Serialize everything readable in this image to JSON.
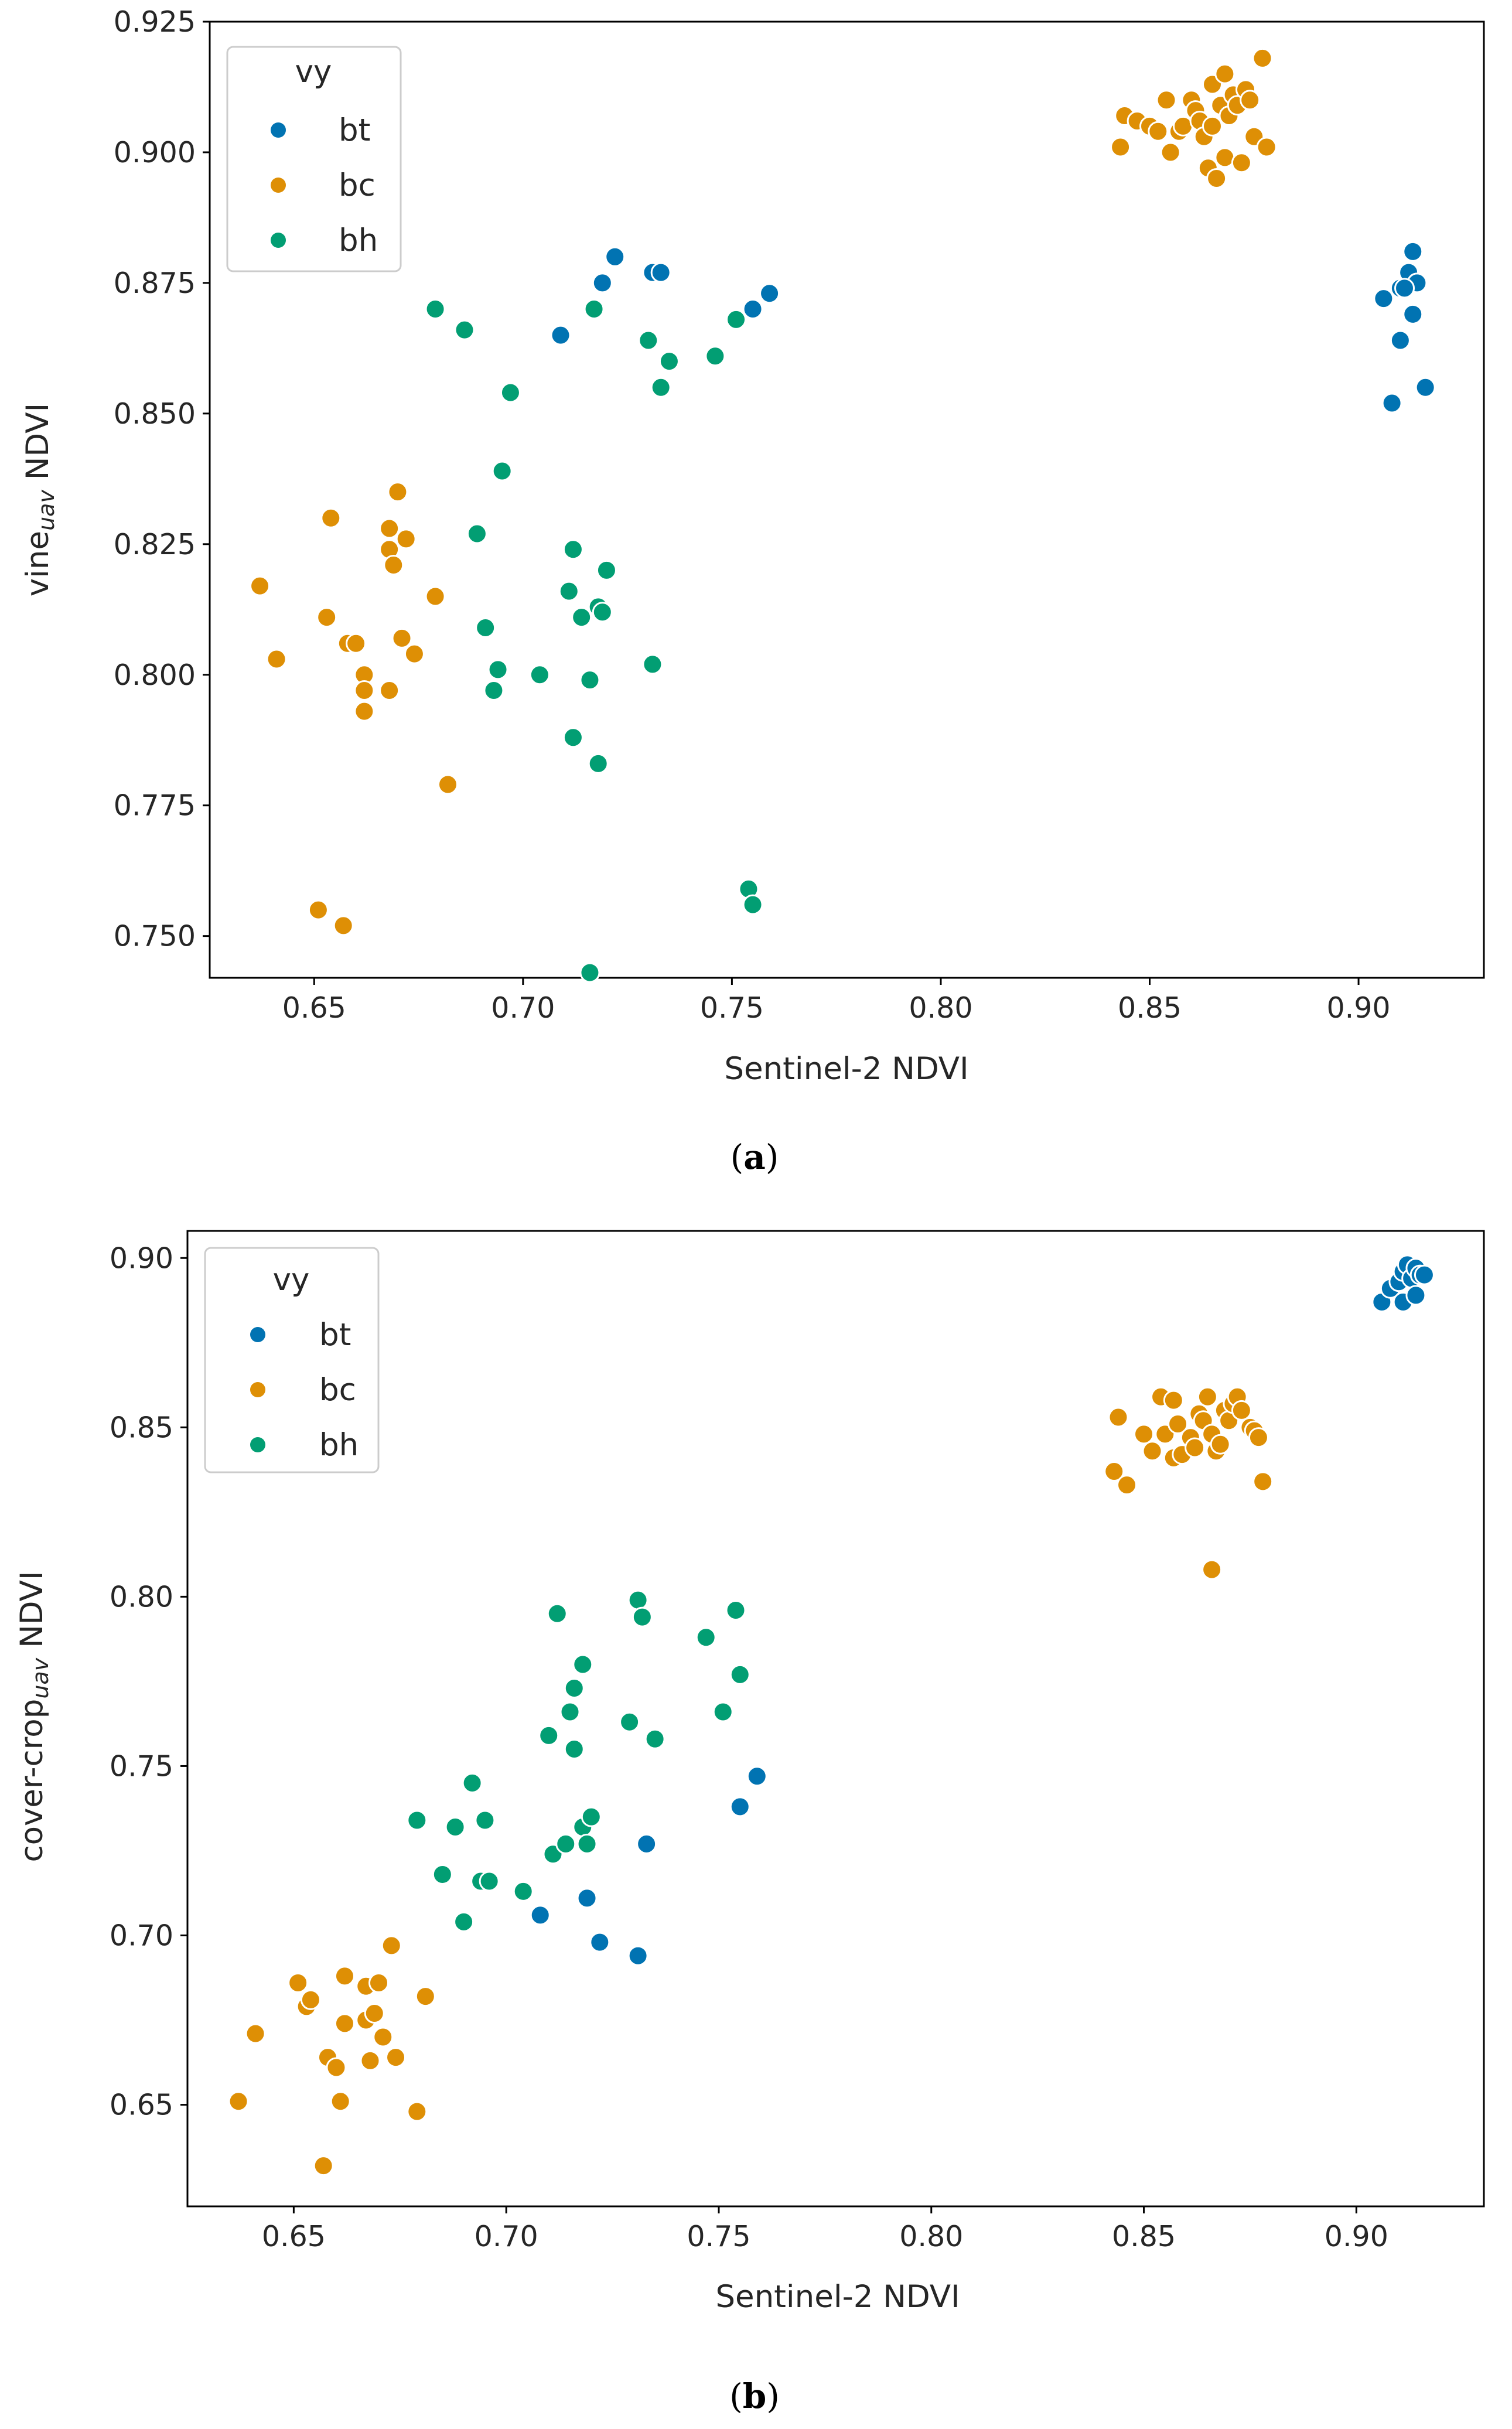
{
  "chart_data": [
    {
      "type": "scatter",
      "caption": {
        "open": "(",
        "letter": "a",
        "close": ")"
      },
      "xlabel": "Sentinel-2 NDVI",
      "ylabel": {
        "base": "vine",
        "subscript": "uav",
        "suffix": " NDVI"
      },
      "xlim": [
        0.625,
        0.93
      ],
      "ylim": [
        0.742,
        0.925
      ],
      "xticks": [
        "0.65",
        "0.70",
        "0.75",
        "0.80",
        "0.85",
        "0.90"
      ],
      "yticks": [
        "0.750",
        "0.775",
        "0.800",
        "0.825",
        "0.850",
        "0.875",
        "0.900",
        "0.925"
      ],
      "legend": {
        "title": "vy",
        "position": "top-left"
      },
      "series": [
        {
          "name": "bt",
          "color": "#0173b2",
          "points": [
            [
              0.709,
              0.865
            ],
            [
              0.719,
              0.875
            ],
            [
              0.722,
              0.88
            ],
            [
              0.731,
              0.877
            ],
            [
              0.733,
              0.877
            ],
            [
              0.755,
              0.87
            ],
            [
              0.759,
              0.873
            ],
            [
              0.906,
              0.872
            ],
            [
              0.91,
              0.874
            ],
            [
              0.912,
              0.877
            ],
            [
              0.913,
              0.881
            ],
            [
              0.914,
              0.875
            ],
            [
              0.911,
              0.874
            ],
            [
              0.913,
              0.869
            ],
            [
              0.91,
              0.864
            ],
            [
              0.908,
              0.852
            ],
            [
              0.916,
              0.855
            ]
          ]
        },
        {
          "name": "bc",
          "color": "#de8f05",
          "points": [
            [
              0.637,
              0.817
            ],
            [
              0.641,
              0.803
            ],
            [
              0.654,
              0.83
            ],
            [
              0.653,
              0.811
            ],
            [
              0.658,
              0.806
            ],
            [
              0.66,
              0.806
            ],
            [
              0.662,
              0.8
            ],
            [
              0.662,
              0.797
            ],
            [
              0.662,
              0.793
            ],
            [
              0.668,
              0.828
            ],
            [
              0.668,
              0.824
            ],
            [
              0.669,
              0.821
            ],
            [
              0.67,
              0.835
            ],
            [
              0.672,
              0.826
            ],
            [
              0.671,
              0.807
            ],
            [
              0.674,
              0.804
            ],
            [
              0.668,
              0.797
            ],
            [
              0.679,
              0.815
            ],
            [
              0.682,
              0.779
            ],
            [
              0.651,
              0.755
            ],
            [
              0.657,
              0.752
            ],
            [
              0.843,
              0.901
            ],
            [
              0.844,
              0.907
            ],
            [
              0.847,
              0.906
            ],
            [
              0.85,
              0.905
            ],
            [
              0.852,
              0.904
            ],
            [
              0.854,
              0.91
            ],
            [
              0.855,
              0.9
            ],
            [
              0.857,
              0.904
            ],
            [
              0.858,
              0.905
            ],
            [
              0.86,
              0.91
            ],
            [
              0.861,
              0.908
            ],
            [
              0.862,
              0.906
            ],
            [
              0.863,
              0.903
            ],
            [
              0.864,
              0.897
            ],
            [
              0.865,
              0.913
            ],
            [
              0.865,
              0.905
            ],
            [
              0.866,
              0.895
            ],
            [
              0.867,
              0.909
            ],
            [
              0.868,
              0.915
            ],
            [
              0.868,
              0.899
            ],
            [
              0.869,
              0.907
            ],
            [
              0.87,
              0.911
            ],
            [
              0.871,
              0.909
            ],
            [
              0.872,
              0.898
            ],
            [
              0.873,
              0.912
            ],
            [
              0.874,
              0.91
            ],
            [
              0.875,
              0.903
            ],
            [
              0.877,
              0.918
            ],
            [
              0.878,
              0.901
            ]
          ]
        },
        {
          "name": "bh",
          "color": "#029e73",
          "points": [
            [
              0.679,
              0.87
            ],
            [
              0.686,
              0.866
            ],
            [
              0.697,
              0.854
            ],
            [
              0.695,
              0.839
            ],
            [
              0.689,
              0.827
            ],
            [
              0.691,
              0.809
            ],
            [
              0.694,
              0.801
            ],
            [
              0.693,
              0.797
            ],
            [
              0.704,
              0.8
            ],
            [
              0.711,
              0.816
            ],
            [
              0.712,
              0.824
            ],
            [
              0.714,
              0.811
            ],
            [
              0.717,
              0.87
            ],
            [
              0.718,
              0.813
            ],
            [
              0.719,
              0.812
            ],
            [
              0.72,
              0.82
            ],
            [
              0.716,
              0.799
            ],
            [
              0.712,
              0.788
            ],
            [
              0.718,
              0.783
            ],
            [
              0.716,
              0.743
            ],
            [
              0.73,
              0.864
            ],
            [
              0.733,
              0.855
            ],
            [
              0.735,
              0.86
            ],
            [
              0.731,
              0.802
            ],
            [
              0.746,
              0.861
            ],
            [
              0.751,
              0.868
            ],
            [
              0.754,
              0.759
            ],
            [
              0.755,
              0.756
            ]
          ]
        }
      ]
    },
    {
      "type": "scatter",
      "caption": {
        "open": "(",
        "letter": "b",
        "close": ")"
      },
      "xlabel": "Sentinel-2 NDVI",
      "ylabel": {
        "base": "cover-crop",
        "subscript": "uav",
        "suffix": " NDVI"
      },
      "xlim": [
        0.625,
        0.93
      ],
      "ylim": [
        0.62,
        0.908
      ],
      "xticks": [
        "0.65",
        "0.70",
        "0.75",
        "0.80",
        "0.85",
        "0.90"
      ],
      "yticks": [
        "0.65",
        "0.70",
        "0.75",
        "0.80",
        "0.85",
        "0.90"
      ],
      "legend": {
        "title": "vy",
        "position": "top-left"
      },
      "series": [
        {
          "name": "bt",
          "color": "#0173b2",
          "points": [
            [
              0.708,
              0.706
            ],
            [
              0.719,
              0.711
            ],
            [
              0.722,
              0.698
            ],
            [
              0.731,
              0.694
            ],
            [
              0.733,
              0.727
            ],
            [
              0.755,
              0.738
            ],
            [
              0.759,
              0.747
            ],
            [
              0.906,
              0.887
            ],
            [
              0.908,
              0.891
            ],
            [
              0.91,
              0.893
            ],
            [
              0.911,
              0.896
            ],
            [
              0.912,
              0.898
            ],
            [
              0.913,
              0.894
            ],
            [
              0.914,
              0.897
            ],
            [
              0.915,
              0.895
            ],
            [
              0.916,
              0.895
            ],
            [
              0.911,
              0.887
            ],
            [
              0.914,
              0.889
            ]
          ]
        },
        {
          "name": "bc",
          "color": "#de8f05",
          "points": [
            [
              0.637,
              0.651
            ],
            [
              0.641,
              0.671
            ],
            [
              0.651,
              0.686
            ],
            [
              0.653,
              0.679
            ],
            [
              0.654,
              0.681
            ],
            [
              0.657,
              0.632
            ],
            [
              0.658,
              0.664
            ],
            [
              0.66,
              0.661
            ],
            [
              0.661,
              0.651
            ],
            [
              0.662,
              0.688
            ],
            [
              0.662,
              0.674
            ],
            [
              0.667,
              0.685
            ],
            [
              0.667,
              0.675
            ],
            [
              0.668,
              0.663
            ],
            [
              0.669,
              0.677
            ],
            [
              0.67,
              0.686
            ],
            [
              0.671,
              0.67
            ],
            [
              0.673,
              0.697
            ],
            [
              0.674,
              0.664
            ],
            [
              0.679,
              0.648
            ],
            [
              0.681,
              0.682
            ],
            [
              0.843,
              0.837
            ],
            [
              0.844,
              0.853
            ],
            [
              0.846,
              0.833
            ],
            [
              0.85,
              0.848
            ],
            [
              0.852,
              0.843
            ],
            [
              0.854,
              0.859
            ],
            [
              0.855,
              0.848
            ],
            [
              0.857,
              0.858
            ],
            [
              0.857,
              0.841
            ],
            [
              0.858,
              0.851
            ],
            [
              0.859,
              0.842
            ],
            [
              0.861,
              0.847
            ],
            [
              0.862,
              0.844
            ],
            [
              0.863,
              0.854
            ],
            [
              0.864,
              0.852
            ],
            [
              0.865,
              0.859
            ],
            [
              0.866,
              0.808
            ],
            [
              0.866,
              0.848
            ],
            [
              0.867,
              0.843
            ],
            [
              0.868,
              0.845
            ],
            [
              0.869,
              0.855
            ],
            [
              0.87,
              0.852
            ],
            [
              0.871,
              0.857
            ],
            [
              0.872,
              0.859
            ],
            [
              0.873,
              0.855
            ],
            [
              0.875,
              0.85
            ],
            [
              0.876,
              0.849
            ],
            [
              0.877,
              0.847
            ],
            [
              0.878,
              0.834
            ]
          ]
        },
        {
          "name": "bh",
          "color": "#029e73",
          "points": [
            [
              0.679,
              0.734
            ],
            [
              0.685,
              0.718
            ],
            [
              0.688,
              0.732
            ],
            [
              0.69,
              0.704
            ],
            [
              0.692,
              0.745
            ],
            [
              0.694,
              0.716
            ],
            [
              0.695,
              0.734
            ],
            [
              0.696,
              0.716
            ],
            [
              0.704,
              0.713
            ],
            [
              0.71,
              0.759
            ],
            [
              0.711,
              0.724
            ],
            [
              0.712,
              0.795
            ],
            [
              0.714,
              0.727
            ],
            [
              0.715,
              0.766
            ],
            [
              0.716,
              0.773
            ],
            [
              0.716,
              0.755
            ],
            [
              0.718,
              0.78
            ],
            [
              0.718,
              0.732
            ],
            [
              0.719,
              0.727
            ],
            [
              0.72,
              0.735
            ],
            [
              0.729,
              0.763
            ],
            [
              0.731,
              0.799
            ],
            [
              0.732,
              0.794
            ],
            [
              0.735,
              0.758
            ],
            [
              0.747,
              0.788
            ],
            [
              0.751,
              0.766
            ],
            [
              0.754,
              0.796
            ],
            [
              0.755,
              0.777
            ]
          ]
        }
      ]
    }
  ]
}
